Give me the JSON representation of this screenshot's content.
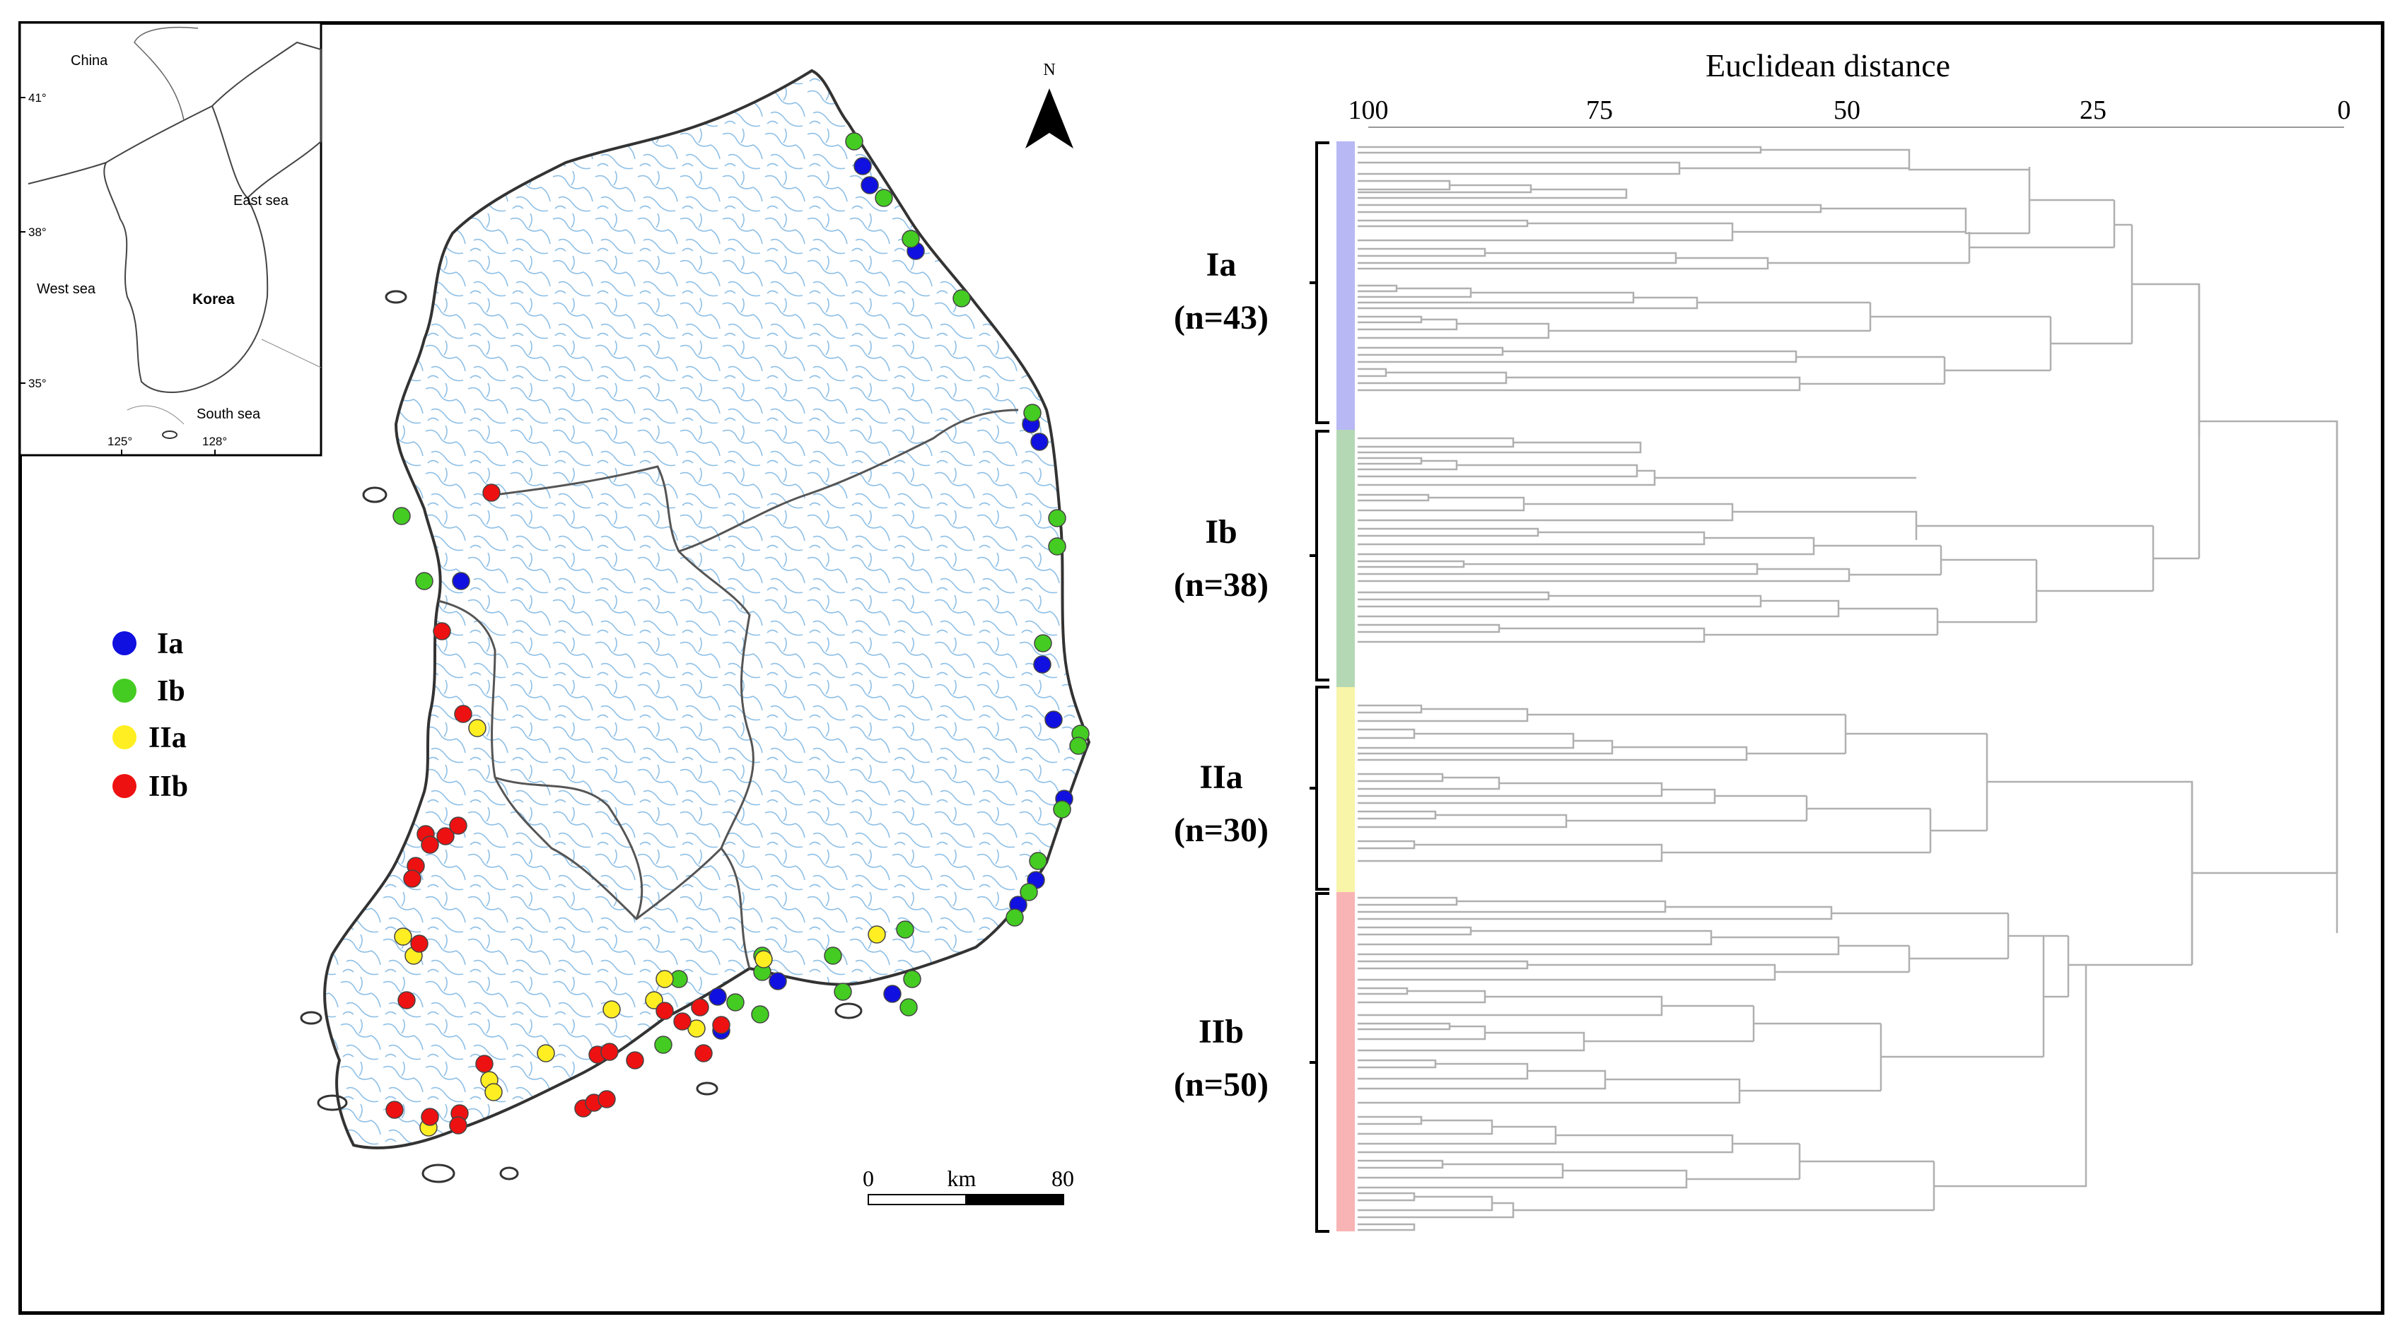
{
  "inset_map": {
    "labels": [
      "China",
      "East sea",
      "Korea",
      "West sea",
      "South sea"
    ],
    "lat_ticks": [
      "41°",
      "38°",
      "35°"
    ],
    "lon_ticks": [
      "125°",
      "128°"
    ]
  },
  "main_map": {
    "north_label": "N",
    "scale_start": "0",
    "scale_unit": "km",
    "scale_end": "80",
    "legend": [
      {
        "label": "Ia",
        "color": "#1010e0"
      },
      {
        "label": "Ib",
        "color": "#44cc22"
      },
      {
        "label": "IIa",
        "color": "#ffee22"
      },
      {
        "label": "IIb",
        "color": "#ee1111"
      }
    ]
  },
  "dendrogram": {
    "title": "Euclidean distance",
    "axis_ticks": [
      "100",
      "75",
      "50",
      "25",
      "0"
    ],
    "clusters": [
      {
        "name": "Ia",
        "count_label": "(n=43)",
        "color": "#b8b8f4"
      },
      {
        "name": "Ib",
        "count_label": "(n=38)",
        "color": "#b4d8b4"
      },
      {
        "name": "IIa",
        "count_label": "(n=30)",
        "color": "#f8f4a8"
      },
      {
        "name": "IIb",
        "count_label": "(n=50)",
        "color": "#f8b4b4"
      }
    ]
  }
}
